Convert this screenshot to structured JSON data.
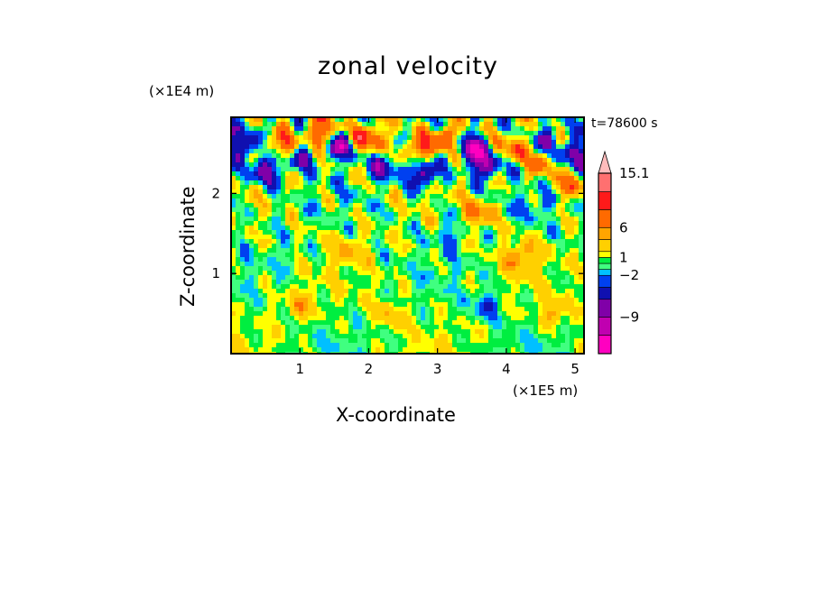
{
  "chart_data": {
    "type": "heatmap",
    "title": "zonal velocity",
    "xlabel": "X-coordinate",
    "ylabel": "Z-coordinate",
    "x_unit": "(×1E5 m)",
    "y_unit": "(×1E4 m)",
    "time_label": "t=78600 s",
    "xlim": [
      0,
      5.13
    ],
    "ylim": [
      0,
      2.95
    ],
    "x_ticks": [
      {
        "value": 1,
        "label": "1"
      },
      {
        "value": 2,
        "label": "2"
      },
      {
        "value": 3,
        "label": "3"
      },
      {
        "value": 4,
        "label": "4"
      },
      {
        "value": 5,
        "label": "5"
      }
    ],
    "y_ticks": [
      {
        "value": 1,
        "label": "1"
      },
      {
        "value": 2,
        "label": "2"
      }
    ],
    "colorbar": {
      "levels": [
        -15.1,
        -12,
        -9,
        -6,
        -4,
        -2,
        -1,
        0,
        1,
        2,
        4,
        6,
        9,
        12,
        15.1
      ],
      "colors": [
        "#ff00c0",
        "#c000b0",
        "#8000a8",
        "#1010b0",
        "#0040f0",
        "#00c0ff",
        "#40ff80",
        "#00ee40",
        "#ffff00",
        "#ffd000",
        "#ffa500",
        "#ff6a00",
        "#ff1a1a",
        "#ff7070",
        "#ffbcbc"
      ],
      "labels": [
        {
          "value": 15.1,
          "text": "15.1"
        },
        {
          "value": 6,
          "text": "6"
        },
        {
          "value": 1,
          "text": "1"
        },
        {
          "value": -2,
          "text": "−2"
        },
        {
          "value": -9,
          "text": "−9"
        }
      ]
    },
    "field_features": [
      {
        "x": 0.2,
        "z": 2.6,
        "value": -8
      },
      {
        "x": 0.5,
        "z": 2.3,
        "value": -9
      },
      {
        "x": 0.7,
        "z": 2.6,
        "value": 8
      },
      {
        "x": 1.0,
        "z": 2.45,
        "value": -5
      },
      {
        "x": 1.3,
        "z": 2.75,
        "value": 9
      },
      {
        "x": 1.6,
        "z": 2.6,
        "value": -9
      },
      {
        "x": 2.0,
        "z": 2.7,
        "value": 10
      },
      {
        "x": 2.25,
        "z": 2.35,
        "value": -7
      },
      {
        "x": 2.7,
        "z": 2.55,
        "value": 8
      },
      {
        "x": 2.8,
        "z": 2.25,
        "value": -10
      },
      {
        "x": 3.1,
        "z": 2.7,
        "value": 9
      },
      {
        "x": 3.5,
        "z": 2.55,
        "value": -10
      },
      {
        "x": 3.7,
        "z": 2.35,
        "value": -9
      },
      {
        "x": 4.1,
        "z": 2.55,
        "value": 7
      },
      {
        "x": 4.5,
        "z": 2.35,
        "value": 6
      },
      {
        "x": 4.6,
        "z": 2.7,
        "value": -6
      },
      {
        "x": 5.0,
        "z": 2.5,
        "value": -8
      },
      {
        "x": 3.6,
        "z": 1.75,
        "value": 6
      },
      {
        "x": 4.4,
        "z": 1.85,
        "value": -3
      },
      {
        "x": 4.9,
        "z": 2.1,
        "value": 6
      },
      {
        "x": 3.2,
        "z": 1.5,
        "value": -3
      },
      {
        "x": 4.2,
        "z": 1.2,
        "value": 5
      },
      {
        "x": 1.7,
        "z": 1.3,
        "value": 3
      },
      {
        "x": 0.8,
        "z": 1.2,
        "value": -1.5
      },
      {
        "x": 3.7,
        "z": 0.6,
        "value": -4
      },
      {
        "x": 4.7,
        "z": 0.5,
        "value": 4
      },
      {
        "x": 2.3,
        "z": 0.5,
        "value": 3
      },
      {
        "x": 1.0,
        "z": 0.6,
        "value": 4
      }
    ]
  }
}
